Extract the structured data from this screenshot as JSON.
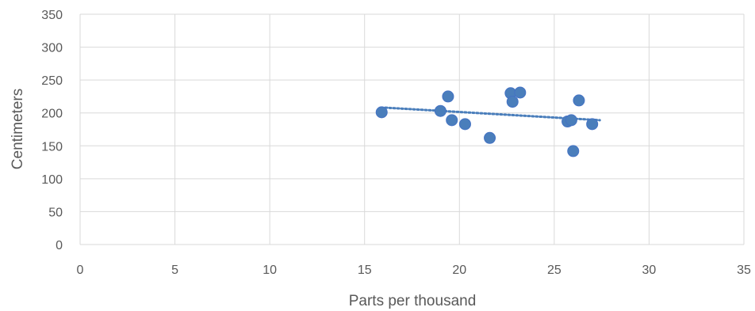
{
  "chart_data": {
    "type": "scatter",
    "title": "",
    "xlabel": "Parts per thousand",
    "ylabel": "Centimeters",
    "xlim": [
      0,
      35
    ],
    "ylim": [
      0,
      350
    ],
    "xticks": [
      0,
      5,
      10,
      15,
      20,
      25,
      30,
      35
    ],
    "yticks": [
      0,
      50,
      100,
      150,
      200,
      250,
      300,
      350
    ],
    "grid": true,
    "legend": "none",
    "point_color": "#4a7ebb",
    "points": [
      {
        "x": 15.9,
        "y": 201
      },
      {
        "x": 19.0,
        "y": 203
      },
      {
        "x": 19.4,
        "y": 225
      },
      {
        "x": 19.6,
        "y": 189
      },
      {
        "x": 20.3,
        "y": 183
      },
      {
        "x": 21.6,
        "y": 162
      },
      {
        "x": 22.7,
        "y": 230
      },
      {
        "x": 22.8,
        "y": 217
      },
      {
        "x": 23.2,
        "y": 231
      },
      {
        "x": 25.7,
        "y": 187
      },
      {
        "x": 25.9,
        "y": 189
      },
      {
        "x": 26.0,
        "y": 142
      },
      {
        "x": 26.3,
        "y": 219
      },
      {
        "x": 27.0,
        "y": 183
      }
    ],
    "trendline": {
      "type": "linear",
      "style": "dotted",
      "x": [
        16.1,
        27.4
      ],
      "y": [
        208,
        189
      ]
    }
  }
}
